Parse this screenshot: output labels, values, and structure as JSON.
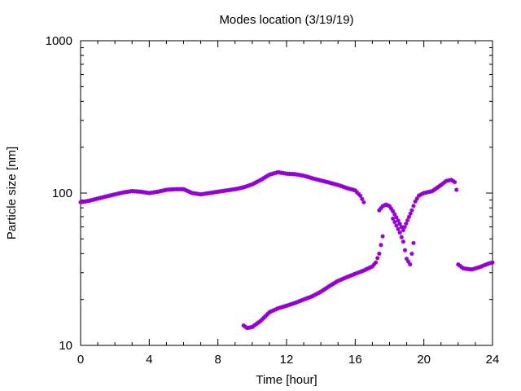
{
  "chart_data": {
    "type": "scatter",
    "title": "Modes location (3/19/19)",
    "xlabel": "Time [hour]",
    "ylabel": "Particle size [nm]",
    "xlim": [
      0,
      24
    ],
    "ylim": [
      10,
      1000
    ],
    "yscale": "log",
    "grid": false,
    "legend": "none",
    "marker_color": "#9400d3",
    "x_ticks": [
      0,
      4,
      8,
      12,
      16,
      20,
      24
    ],
    "x_tick_labels": [
      "0",
      "4",
      "8",
      "12",
      "16",
      "20",
      "24"
    ],
    "y_ticks": [
      10,
      100,
      1000
    ],
    "y_tick_labels": [
      "10",
      "100",
      "1000"
    ],
    "series": [
      {
        "points": [
          [
            0.0,
            87
          ],
          [
            0.5,
            89
          ],
          [
            1.0,
            92
          ],
          [
            1.5,
            95
          ],
          [
            2.0,
            98
          ],
          [
            2.5,
            101
          ],
          [
            3.0,
            103
          ],
          [
            3.5,
            102
          ],
          [
            4.0,
            100
          ],
          [
            4.5,
            102
          ],
          [
            5.0,
            105
          ],
          [
            5.5,
            106
          ],
          [
            6.0,
            106
          ],
          [
            6.5,
            100
          ],
          [
            7.0,
            98
          ],
          [
            7.5,
            100
          ],
          [
            8.0,
            102
          ],
          [
            8.5,
            104
          ],
          [
            9.0,
            106
          ],
          [
            9.5,
            109
          ],
          [
            10.0,
            114
          ],
          [
            10.5,
            122
          ],
          [
            11.0,
            132
          ],
          [
            11.5,
            137
          ],
          [
            12.0,
            134
          ],
          [
            12.5,
            133
          ],
          [
            13.0,
            130
          ],
          [
            13.5,
            125
          ],
          [
            14.0,
            121
          ],
          [
            14.5,
            117
          ],
          [
            15.0,
            113
          ],
          [
            15.5,
            108
          ],
          [
            16.0,
            104
          ],
          [
            16.3,
            96
          ],
          [
            16.5,
            87
          ],
          [
            17.4,
            77
          ],
          [
            17.6,
            82
          ],
          [
            17.8,
            84
          ],
          [
            18.0,
            82
          ],
          [
            18.2,
            76
          ],
          [
            18.5,
            66
          ],
          [
            18.8,
            57
          ],
          [
            19.3,
            77
          ],
          [
            19.5,
            88
          ],
          [
            19.7,
            96
          ],
          [
            20.0,
            100
          ],
          [
            20.5,
            103
          ],
          [
            21.0,
            113
          ],
          [
            21.3,
            120
          ],
          [
            21.6,
            122
          ],
          [
            21.8,
            118
          ],
          [
            21.9,
            105
          ]
        ]
      },
      {
        "points": [
          [
            9.5,
            13.5
          ],
          [
            9.7,
            13.0
          ],
          [
            10.0,
            13.2
          ],
          [
            10.5,
            14.5
          ],
          [
            11.0,
            16.5
          ],
          [
            11.5,
            17.5
          ],
          [
            12.0,
            18.2
          ],
          [
            12.5,
            19.0
          ],
          [
            13.0,
            20.0
          ],
          [
            13.5,
            21.0
          ],
          [
            14.0,
            22.5
          ],
          [
            14.5,
            24.5
          ],
          [
            15.0,
            26.5
          ],
          [
            15.5,
            28.0
          ],
          [
            16.0,
            29.5
          ],
          [
            16.5,
            31.0
          ],
          [
            17.0,
            33.0
          ],
          [
            17.2,
            35.0
          ],
          [
            17.4,
            40.0
          ],
          [
            17.6,
            52.0
          ],
          [
            18.2,
            68.0
          ],
          [
            18.6,
            55.0
          ],
          [
            18.8,
            48.0
          ],
          [
            19.0,
            37.0
          ],
          [
            19.2,
            34.0
          ],
          [
            19.4,
            47.0
          ],
          [
            22.0,
            34.0
          ],
          [
            22.3,
            32.0
          ],
          [
            22.8,
            31.5
          ],
          [
            23.2,
            32.5
          ],
          [
            23.5,
            33.5
          ],
          [
            23.8,
            34.5
          ],
          [
            24.0,
            35.0
          ]
        ]
      }
    ]
  }
}
